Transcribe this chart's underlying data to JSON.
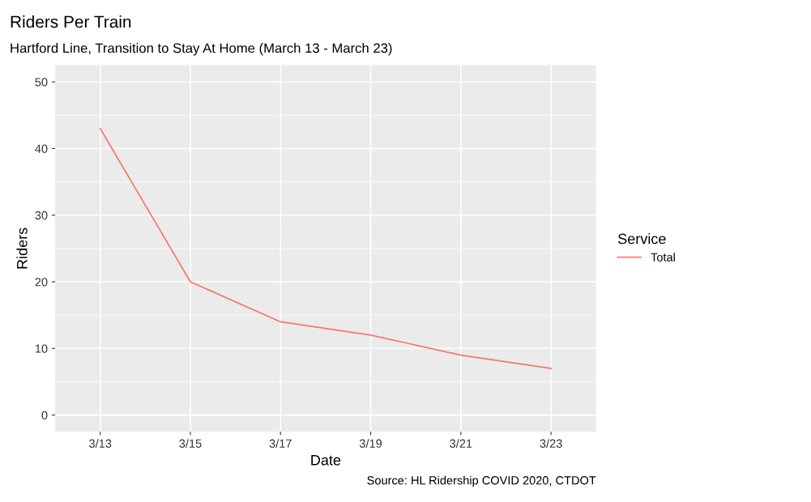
{
  "chart_data": {
    "type": "line",
    "title": "Riders Per Train",
    "subtitle": "Hartford Line, Transition to Stay At Home (March 13 - March 23)",
    "xlabel": "Date",
    "ylabel": "Riders",
    "legend_title": "Service",
    "categories": [
      "3/13",
      "3/15",
      "3/17",
      "3/19",
      "3/21",
      "3/23"
    ],
    "series": [
      {
        "name": "Total",
        "color": "#f8766d",
        "values": [
          43,
          20,
          14,
          12,
          9,
          7
        ]
      }
    ],
    "ylim": [
      -2.5,
      52.5
    ],
    "yticks": [
      0,
      10,
      20,
      30,
      40,
      50
    ],
    "grid": true,
    "legend": "right",
    "annotations": [
      "Source: HL Ridership COVID 2020, CTDOT"
    ]
  }
}
